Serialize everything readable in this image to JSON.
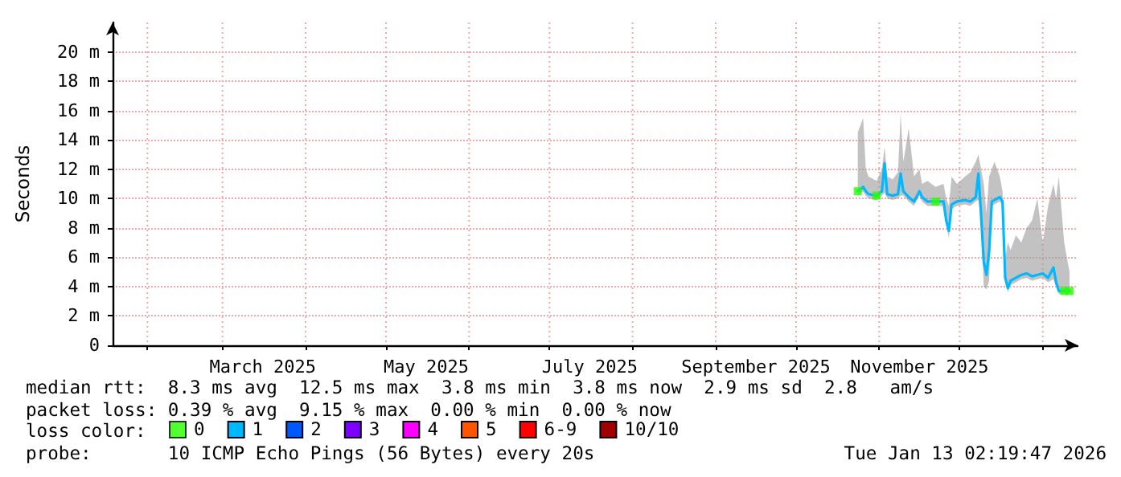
{
  "chart_data": {
    "type": "line",
    "ylabel": "Seconds",
    "xlim": [
      "2025-01-19",
      "2026-01-14"
    ],
    "xticks": [
      {
        "value": "2025-02-01",
        "label": null
      },
      {
        "value": "2025-03-01",
        "label": null
      },
      {
        "value": "2025-04-01",
        "label": null
      },
      {
        "value": "2025-05-01",
        "label": null
      },
      {
        "value": "2025-06-01",
        "label": null
      },
      {
        "value": "2025-07-01",
        "label": null
      },
      {
        "value": "2025-08-01",
        "label": null
      },
      {
        "value": "2025-09-01",
        "label": null
      },
      {
        "value": "2025-10-01",
        "label": null
      },
      {
        "value": "2025-11-01",
        "label": null
      },
      {
        "value": "2025-12-01",
        "label": null
      },
      {
        "value": "2026-01-01",
        "label": null
      },
      {
        "value": "2025-03-16",
        "label": "March 2025"
      },
      {
        "value": "2025-05-16",
        "label": "May 2025"
      },
      {
        "value": "2025-07-16",
        "label": "July 2025"
      },
      {
        "value": "2025-09-16",
        "label": "September 2025"
      },
      {
        "value": "2025-11-16",
        "label": "November 2025"
      }
    ],
    "ylim": [
      0,
      22
    ],
    "yticks": [
      0,
      {
        "value": 2,
        "label": "2 m"
      },
      {
        "value": 4,
        "label": "4 m"
      },
      {
        "value": 6,
        "label": "6 m"
      },
      {
        "value": 8,
        "label": "8 m"
      },
      {
        "value": 10,
        "label": "10 m"
      },
      {
        "value": 12,
        "label": "12 m"
      },
      {
        "value": 14,
        "label": "14 m"
      },
      {
        "value": 16,
        "label": "16 m"
      },
      {
        "value": 18,
        "label": "18 m"
      },
      {
        "value": 20,
        "label": "20 m"
      }
    ],
    "grid": true,
    "legend": "bottom",
    "legend_title": "loss color:",
    "x": [
      "2025-10-24",
      "2025-10-26",
      "2025-10-27",
      "2025-10-28",
      "2025-10-31",
      "2025-11-02",
      "2025-11-03",
      "2025-11-04",
      "2025-11-06",
      "2025-11-08",
      "2025-11-09",
      "2025-11-10",
      "2025-11-12",
      "2025-11-14",
      "2025-11-16",
      "2025-11-17",
      "2025-11-19",
      "2025-11-22",
      "2025-11-25",
      "2025-11-26",
      "2025-11-27",
      "2025-11-28",
      "2025-11-30",
      "2025-12-03",
      "2025-12-05",
      "2025-12-07",
      "2025-12-08",
      "2025-12-09",
      "2025-12-10",
      "2025-12-11",
      "2025-12-12",
      "2025-12-13",
      "2025-12-14",
      "2025-12-16",
      "2025-12-17",
      "2025-12-18",
      "2025-12-19",
      "2025-12-20",
      "2025-12-22",
      "2025-12-24",
      "2025-12-26",
      "2025-12-28",
      "2025-12-30",
      "2026-01-01",
      "2026-01-03",
      "2026-01-05",
      "2026-01-06",
      "2026-01-07",
      "2026-01-09",
      "2026-01-11"
    ],
    "series": [
      {
        "name": "0",
        "color": "#26ff00",
        "type": "scatter",
        "marker": "square",
        "x": [
          "2025-10-24",
          "2025-10-31",
          "2025-11-22",
          "2026-01-09",
          "2026-01-11"
        ],
        "values": [
          10.5,
          10.2,
          9.8,
          3.7,
          3.7
        ]
      },
      {
        "name": "1",
        "color": "#00b8ff",
        "values": [
          10.5,
          10.8,
          10.5,
          10.3,
          10.2,
          10.5,
          12.4,
          10.3,
          10.2,
          10.3,
          11.7,
          10.5,
          10.1,
          9.8,
          10.5,
          10.1,
          9.8,
          9.8,
          9.8,
          8.5,
          7.8,
          9.6,
          9.8,
          9.9,
          9.8,
          10.1,
          11.7,
          8.9,
          5.7,
          4.8,
          6.4,
          9.8,
          9.9,
          10.1,
          9.8,
          4.6,
          3.9,
          4.4,
          4.6,
          4.8,
          4.9,
          4.7,
          4.8,
          4.9,
          4.6,
          5.3,
          4.3,
          3.7,
          3.7,
          3.7
        ],
        "lower": [
          10.2,
          10.5,
          10.2,
          10,
          9.9,
          10.2,
          10.4,
          10,
          9.9,
          10,
          10.2,
          10.2,
          9.8,
          9.5,
          10.2,
          9.8,
          9.5,
          9.5,
          9.5,
          8.2,
          7.3,
          9.3,
          9.5,
          9.6,
          9.5,
          9.8,
          9.9,
          8.6,
          4,
          3.8,
          4.4,
          9.5,
          9.6,
          9.8,
          9.5,
          4.3,
          3.6,
          4.1,
          4.3,
          4.5,
          4.6,
          4.4,
          4.5,
          4.6,
          4.3,
          4.5,
          4,
          3.5,
          3.5,
          3.5
        ],
        "upper": [
          14.5,
          15.5,
          12,
          11.5,
          11.2,
          12,
          13.5,
          11.5,
          11.3,
          11.8,
          15.8,
          12.5,
          14.8,
          11.5,
          12,
          11,
          11.2,
          10.8,
          11,
          10,
          9.5,
          11.5,
          11,
          11.5,
          11.8,
          12.5,
          13,
          12,
          11,
          9,
          11.5,
          12,
          12.5,
          11.5,
          10.5,
          6,
          7,
          6.5,
          7.5,
          7,
          8,
          8.5,
          10,
          7,
          9.5,
          11,
          10,
          11.5,
          7,
          5
        ]
      },
      {
        "name": "2",
        "color": "#0059ff",
        "values": [
          null,
          null,
          null,
          null,
          null,
          null,
          null,
          null,
          null,
          null,
          null,
          null,
          null,
          null,
          null,
          null,
          null,
          null,
          null,
          null,
          null,
          null,
          null,
          null,
          null,
          null,
          null,
          null,
          null,
          null,
          null,
          null,
          null,
          null,
          null,
          null,
          null,
          null,
          null,
          null,
          null,
          null,
          null,
          null,
          null,
          null,
          null,
          null,
          null,
          null
        ]
      },
      {
        "name": "3",
        "color": "#7e00ff",
        "values": [
          null,
          null,
          null,
          null,
          null,
          null,
          null,
          null,
          null,
          null,
          null,
          null,
          null,
          null,
          null,
          null,
          null,
          null,
          null,
          null,
          null,
          null,
          null,
          null,
          null,
          null,
          null,
          null,
          null,
          null,
          null,
          null,
          null,
          null,
          null,
          null,
          null,
          null,
          null,
          null,
          null,
          null,
          null,
          null,
          null,
          null,
          null,
          null,
          null,
          null
        ]
      },
      {
        "name": "4",
        "color": "#ff00ff",
        "values": [
          null,
          null,
          null,
          null,
          null,
          null,
          null,
          null,
          null,
          null,
          null,
          null,
          null,
          null,
          null,
          null,
          null,
          null,
          null,
          null,
          null,
          null,
          null,
          null,
          null,
          null,
          null,
          null,
          null,
          null,
          null,
          null,
          null,
          null,
          null,
          null,
          null,
          null,
          null,
          null,
          null,
          null,
          null,
          null,
          null,
          null,
          null,
          null,
          null,
          null
        ]
      },
      {
        "name": "5",
        "color": "#ff5500",
        "values": [
          null,
          null,
          null,
          null,
          null,
          null,
          null,
          null,
          null,
          null,
          null,
          null,
          null,
          null,
          null,
          null,
          null,
          null,
          null,
          null,
          null,
          null,
          null,
          null,
          null,
          null,
          null,
          null,
          null,
          null,
          null,
          null,
          null,
          null,
          null,
          null,
          null,
          null,
          null,
          null,
          null,
          null,
          null,
          null,
          null,
          null,
          null,
          null,
          null,
          null
        ]
      },
      {
        "name": "6-9",
        "color": "#ff0000",
        "values": [
          null,
          null,
          null,
          null,
          null,
          null,
          null,
          null,
          null,
          null,
          null,
          null,
          null,
          null,
          null,
          null,
          null,
          null,
          null,
          null,
          null,
          null,
          null,
          null,
          null,
          null,
          null,
          null,
          null,
          null,
          null,
          null,
          null,
          null,
          null,
          null,
          null,
          null,
          null,
          null,
          null,
          null,
          null,
          null,
          null,
          null,
          null,
          null,
          null,
          null
        ]
      },
      {
        "name": "10/10",
        "color": "#a10000",
        "values": [
          null,
          null,
          null,
          null,
          null,
          null,
          null,
          null,
          null,
          null,
          null,
          null,
          null,
          null,
          null,
          null,
          null,
          null,
          null,
          null,
          null,
          null,
          null,
          null,
          null,
          null,
          null,
          null,
          null,
          null,
          null,
          null,
          null,
          null,
          null,
          null,
          null,
          null,
          null,
          null,
          null,
          null,
          null,
          null,
          null,
          null,
          null,
          null,
          null,
          null
        ]
      }
    ],
    "annotations": [
      "median rtt:  8.3 ms avg  12.5 ms max  3.8 ms min  3.8 ms now  2.9 ms sd  2.8   am/s",
      "packet loss: 0.39 % avg  9.15 % max  0.00 % min  0.00 % now",
      "probe:       10 ICMP Echo Pings (56 Bytes) every 20s",
      "Tue Jan 13 02:19:47 2026"
    ]
  }
}
